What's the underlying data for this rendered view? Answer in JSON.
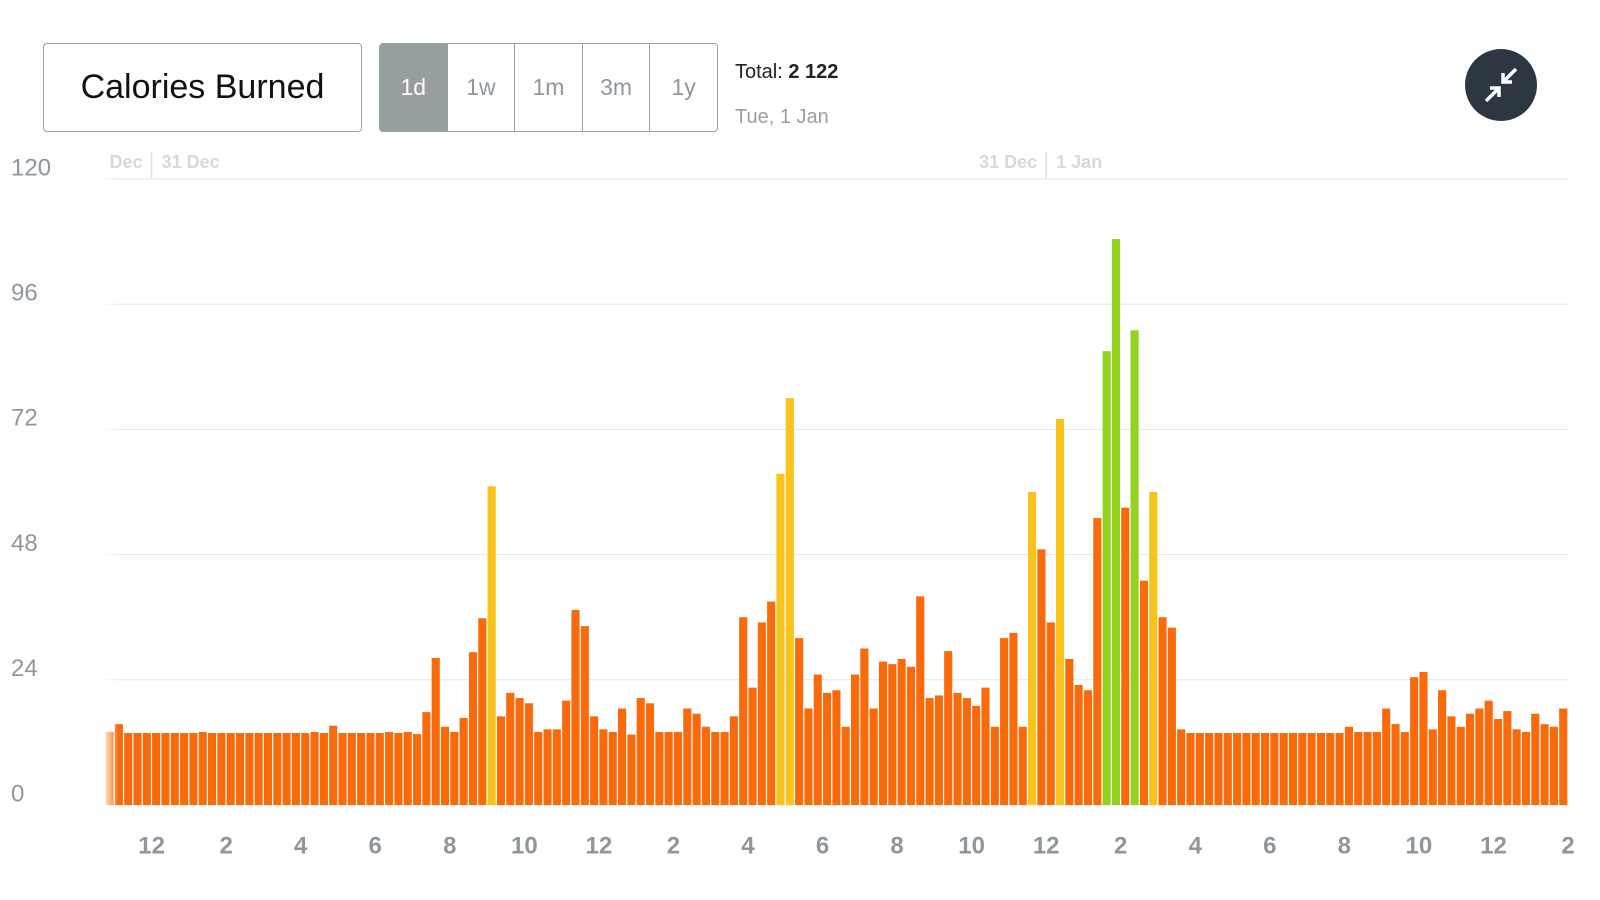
{
  "header": {
    "title": "Calories Burned",
    "ranges": [
      "1d",
      "1w",
      "1m",
      "3m",
      "1y"
    ],
    "active_range": "1d",
    "total_label": "Total:",
    "total_value": "2 122",
    "date": "Tue, 1 Jan"
  },
  "chart_data": {
    "type": "bar",
    "date_markers": [
      {
        "value": 0,
        "before": "Dec",
        "after": "31 Dec"
      },
      {
        "value": 24,
        "before": "31 Dec",
        "after": "1 Jan"
      }
    ],
    "x": [
      -1.25,
      -1,
      -0.75,
      -0.5,
      -0.25,
      0,
      0.25,
      0.5,
      0.75,
      1,
      1.25,
      1.5,
      1.75,
      2,
      2.25,
      2.5,
      2.75,
      3,
      3.25,
      3.5,
      3.75,
      4,
      4.25,
      4.5,
      4.75,
      5,
      5.25,
      5.5,
      5.75,
      6,
      6.25,
      6.5,
      6.75,
      7,
      7.25,
      7.5,
      7.75,
      8,
      8.25,
      8.5,
      8.75,
      9,
      9.25,
      9.5,
      9.75,
      10,
      10.25,
      10.5,
      10.75,
      11,
      11.25,
      11.5,
      11.75,
      12,
      12.25,
      12.5,
      12.75,
      13,
      13.25,
      13.5,
      13.75,
      14,
      14.25,
      14.5,
      14.75,
      15,
      15.25,
      15.5,
      15.75,
      16,
      16.25,
      16.5,
      16.75,
      17,
      17.25,
      17.5,
      17.75,
      18,
      18.25,
      18.5,
      18.75,
      19,
      19.25,
      19.5,
      19.75,
      20,
      20.25,
      20.5,
      20.75,
      21,
      21.25,
      21.5,
      21.75,
      22,
      22.25,
      22.5,
      22.75,
      23,
      23.25,
      23.5,
      23.75,
      24,
      24.25,
      24.5,
      24.75,
      25,
      25.25,
      25.5,
      25.75,
      26,
      26.25,
      26.5,
      26.75,
      27,
      27.25,
      27.5,
      27.75,
      28,
      28.25,
      28.5,
      28.75,
      29,
      29.25,
      29.5,
      29.75,
      30,
      30.25,
      30.5,
      30.75,
      31,
      31.25,
      31.5,
      31.75,
      32,
      32.25,
      32.5,
      32.75,
      33,
      33.25,
      33.5,
      33.75,
      34,
      34.25,
      34.5,
      34.75,
      35,
      35.25,
      35.5,
      35.75,
      36,
      36.25,
      36.5,
      36.75,
      37,
      37.25,
      37.5,
      37.75
    ],
    "values": [
      14,
      15.5,
      13.8,
      13.8,
      13.8,
      13.8,
      13.8,
      13.8,
      13.8,
      13.8,
      14,
      13.8,
      13.8,
      13.8,
      13.8,
      13.8,
      13.8,
      13.8,
      13.8,
      13.8,
      13.8,
      13.8,
      14,
      13.8,
      15.2,
      13.8,
      13.8,
      13.8,
      13.8,
      13.8,
      14,
      13.8,
      14,
      13.6,
      17.8,
      28.2,
      15,
      14,
      16.7,
      29.3,
      35.8,
      61.1,
      17,
      21.5,
      20.5,
      19.5,
      14,
      14.5,
      14.5,
      20,
      37.4,
      34.3,
      17,
      14.5,
      14,
      18.5,
      13.5,
      20.5,
      19.5,
      14,
      14,
      14,
      18.5,
      17.5,
      15,
      14,
      14,
      17,
      36,
      22.5,
      35,
      39,
      63.5,
      78,
      32,
      18.5,
      25,
      21.5,
      22,
      15,
      25,
      30,
      18.5,
      27.5,
      27,
      28,
      26.5,
      40,
      20.5,
      21,
      29.5,
      21.5,
      20.5,
      19,
      22.5,
      15,
      32,
      33,
      15,
      60,
      49,
      35,
      74,
      28,
      23,
      22,
      55,
      87,
      108.5,
      57,
      91,
      43,
      60,
      36,
      34,
      14.5,
      13.8,
      13.8,
      13.8,
      13.8,
      13.8,
      13.8,
      13.8,
      13.8,
      13.8,
      13.8,
      13.8,
      13.8,
      13.8,
      13.8,
      13.8,
      13.8,
      13.8,
      15,
      14,
      14,
      14,
      18.5,
      15.5,
      14,
      24.5,
      25.5,
      14.5,
      22,
      17,
      15,
      17.5,
      18.5,
      20,
      16.5,
      18,
      14.5,
      14,
      17.5,
      15.5,
      15,
      18.5
    ],
    "colors": [
      "#f96a0a",
      "#f96a0a",
      "#f96a0a",
      "#f96a0a",
      "#f96a0a",
      "#f96a0a",
      "#f96a0a",
      "#f96a0a",
      "#f96a0a",
      "#f96a0a",
      "#f96a0a",
      "#f96a0a",
      "#f96a0a",
      "#f96a0a",
      "#f96a0a",
      "#f96a0a",
      "#f96a0a",
      "#f96a0a",
      "#f96a0a",
      "#f96a0a",
      "#f96a0a",
      "#f96a0a",
      "#f96a0a",
      "#f96a0a",
      "#f96a0a",
      "#f96a0a",
      "#f96a0a",
      "#f96a0a",
      "#f96a0a",
      "#f96a0a",
      "#f96a0a",
      "#f96a0a",
      "#f96a0a",
      "#f96a0a",
      "#f96a0a",
      "#f96a0a",
      "#f96a0a",
      "#f96a0a",
      "#f96a0a",
      "#f96a0a",
      "#f96a0a",
      "#f8c31b",
      "#f96a0a",
      "#f96a0a",
      "#f96a0a",
      "#f96a0a",
      "#f96a0a",
      "#f96a0a",
      "#f96a0a",
      "#f96a0a",
      "#f96a0a",
      "#f96a0a",
      "#f96a0a",
      "#f96a0a",
      "#f96a0a",
      "#f96a0a",
      "#f96a0a",
      "#f96a0a",
      "#f96a0a",
      "#f96a0a",
      "#f96a0a",
      "#f96a0a",
      "#f96a0a",
      "#f96a0a",
      "#f96a0a",
      "#f96a0a",
      "#f96a0a",
      "#f96a0a",
      "#f96a0a",
      "#f96a0a",
      "#f96a0a",
      "#f96a0a",
      "#f8c31b",
      "#f8c31b",
      "#f96a0a",
      "#f96a0a",
      "#f96a0a",
      "#f96a0a",
      "#f96a0a",
      "#f96a0a",
      "#f96a0a",
      "#f96a0a",
      "#f96a0a",
      "#f96a0a",
      "#f96a0a",
      "#f96a0a",
      "#f96a0a",
      "#f96a0a",
      "#f96a0a",
      "#f96a0a",
      "#f96a0a",
      "#f96a0a",
      "#f96a0a",
      "#f96a0a",
      "#f96a0a",
      "#f96a0a",
      "#f96a0a",
      "#f96a0a",
      "#f96a0a",
      "#f8c31b",
      "#f96a0a",
      "#f96a0a",
      "#f8c31b",
      "#f96a0a",
      "#f96a0a",
      "#f96a0a",
      "#f96a0a",
      "#93d31f",
      "#93d31f",
      "#f96a0a",
      "#93d31f",
      "#f96a0a",
      "#f8c31b",
      "#f96a0a",
      "#f96a0a",
      "#f96a0a",
      "#f96a0a",
      "#f96a0a",
      "#f96a0a",
      "#f96a0a",
      "#f96a0a",
      "#f96a0a",
      "#f96a0a",
      "#f96a0a",
      "#f96a0a",
      "#f96a0a",
      "#f96a0a",
      "#f96a0a",
      "#f96a0a",
      "#f96a0a",
      "#f96a0a",
      "#f96a0a",
      "#f96a0a",
      "#f96a0a",
      "#f96a0a",
      "#f96a0a",
      "#f96a0a",
      "#f96a0a",
      "#f96a0a",
      "#f96a0a",
      "#f96a0a",
      "#f96a0a",
      "#f96a0a",
      "#f96a0a",
      "#f96a0a",
      "#f96a0a",
      "#f96a0a",
      "#f96a0a",
      "#f96a0a",
      "#f96a0a",
      "#f96a0a",
      "#f96a0a",
      "#f96a0a",
      "#f96a0a",
      "#f96a0a",
      "#f96a0a",
      "#f96a0a"
    ],
    "xlim": [
      -1.25,
      38
    ],
    "xticks": [
      {
        "value": 0,
        "label": "12"
      },
      {
        "value": 2,
        "label": "2"
      },
      {
        "value": 4,
        "label": "4"
      },
      {
        "value": 6,
        "label": "6"
      },
      {
        "value": 8,
        "label": "8"
      },
      {
        "value": 10,
        "label": "10"
      },
      {
        "value": 12,
        "label": "12"
      },
      {
        "value": 14,
        "label": "2"
      },
      {
        "value": 16,
        "label": "4"
      },
      {
        "value": 18,
        "label": "6"
      },
      {
        "value": 20,
        "label": "8"
      },
      {
        "value": 22,
        "label": "10"
      },
      {
        "value": 24,
        "label": "12"
      },
      {
        "value": 26,
        "label": "2"
      },
      {
        "value": 28,
        "label": "4"
      },
      {
        "value": 30,
        "label": "6"
      },
      {
        "value": 32,
        "label": "8"
      },
      {
        "value": 34,
        "label": "10"
      },
      {
        "value": 36,
        "label": "12"
      },
      {
        "value": 38,
        "label": "2"
      }
    ],
    "ylim": [
      0,
      120
    ],
    "yticks": [
      0,
      24,
      48,
      72,
      96,
      120
    ],
    "grid": true
  }
}
